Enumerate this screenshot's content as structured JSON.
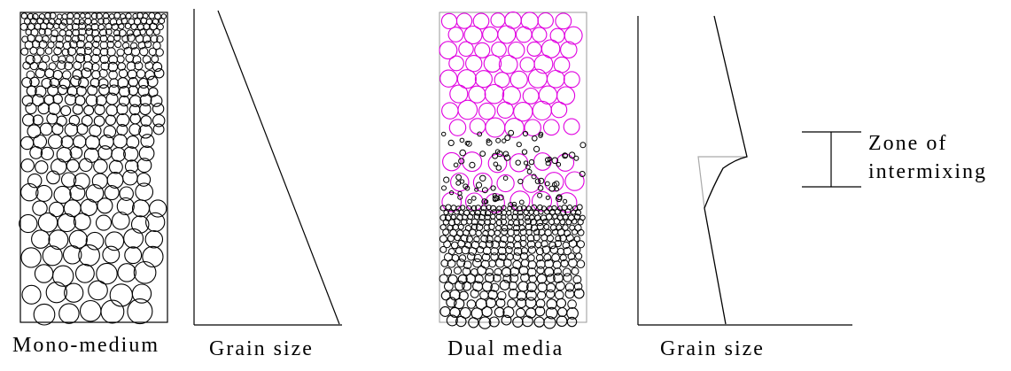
{
  "labels": {
    "mono_medium": "Mono-medium",
    "grain_size_1": "Grain size",
    "dual_media": "Dual media",
    "grain_size_2": "Grain size",
    "zone_line1": "Zone of",
    "zone_line2": "intermixing"
  },
  "colors": {
    "coarse_media": "#e000e0",
    "fine_media": "#000000",
    "ideal_profile": "#aaaaaa",
    "column_border": "#999999"
  }
}
